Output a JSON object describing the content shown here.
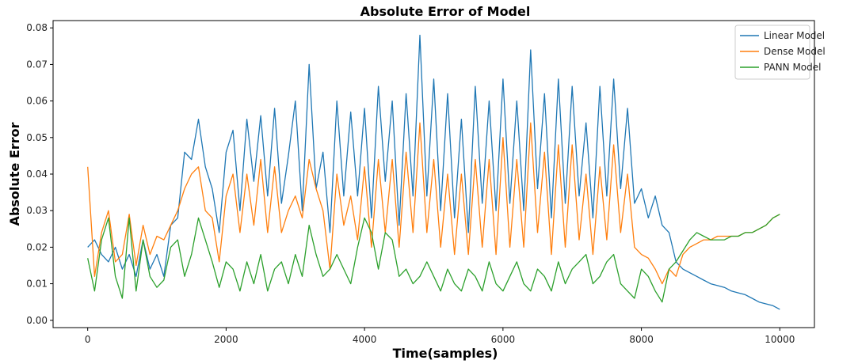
{
  "chart_data": {
    "type": "line",
    "title": "Absolute Error of Model",
    "xlabel": "Time(samples)",
    "ylabel": "Absolute Error",
    "xlim": [
      -500,
      10500
    ],
    "ylim": [
      -0.002,
      0.082
    ],
    "xticks": [
      0,
      2000,
      4000,
      6000,
      8000,
      10000
    ],
    "yticks": [
      0.0,
      0.01,
      0.02,
      0.03,
      0.04,
      0.05,
      0.06,
      0.07,
      0.08
    ],
    "ytick_labels": [
      "0.00",
      "0.01",
      "0.02",
      "0.03",
      "0.04",
      "0.05",
      "0.06",
      "0.07",
      "0.08"
    ],
    "legend_position": "upper-right",
    "grid": false,
    "series": [
      {
        "name": "Linear Model",
        "color": "#1f77b4",
        "x": [
          0,
          100,
          200,
          300,
          400,
          500,
          600,
          700,
          800,
          900,
          1000,
          1100,
          1200,
          1300,
          1400,
          1500,
          1600,
          1700,
          1800,
          1900,
          2000,
          2100,
          2200,
          2300,
          2400,
          2500,
          2600,
          2700,
          2800,
          2900,
          3000,
          3100,
          3200,
          3300,
          3400,
          3500,
          3600,
          3700,
          3800,
          3900,
          4000,
          4100,
          4200,
          4300,
          4400,
          4500,
          4600,
          4700,
          4800,
          4900,
          5000,
          5100,
          5200,
          5300,
          5400,
          5500,
          5600,
          5700,
          5800,
          5900,
          6000,
          6100,
          6200,
          6300,
          6400,
          6500,
          6600,
          6700,
          6800,
          6900,
          7000,
          7100,
          7200,
          7300,
          7400,
          7500,
          7600,
          7700,
          7800,
          7900,
          8000,
          8100,
          8200,
          8300,
          8400,
          8500,
          8600,
          8700,
          8800,
          8900,
          9000,
          9100,
          9200,
          9300,
          9400,
          9500,
          9600,
          9700,
          9800,
          9900,
          10000
        ],
        "values": [
          0.02,
          0.022,
          0.018,
          0.016,
          0.02,
          0.014,
          0.018,
          0.012,
          0.022,
          0.014,
          0.018,
          0.012,
          0.026,
          0.028,
          0.046,
          0.044,
          0.055,
          0.042,
          0.036,
          0.024,
          0.046,
          0.052,
          0.03,
          0.055,
          0.038,
          0.056,
          0.034,
          0.058,
          0.032,
          0.045,
          0.06,
          0.03,
          0.07,
          0.036,
          0.046,
          0.024,
          0.06,
          0.034,
          0.057,
          0.034,
          0.058,
          0.028,
          0.064,
          0.038,
          0.06,
          0.026,
          0.062,
          0.034,
          0.078,
          0.034,
          0.066,
          0.03,
          0.062,
          0.028,
          0.055,
          0.024,
          0.064,
          0.032,
          0.06,
          0.03,
          0.066,
          0.032,
          0.06,
          0.03,
          0.074,
          0.036,
          0.062,
          0.028,
          0.066,
          0.032,
          0.064,
          0.034,
          0.054,
          0.028,
          0.064,
          0.034,
          0.066,
          0.036,
          0.058,
          0.032,
          0.036,
          0.028,
          0.034,
          0.026,
          0.024,
          0.016,
          0.014,
          0.013,
          0.012,
          0.011,
          0.01,
          0.0095,
          0.009,
          0.008,
          0.0075,
          0.007,
          0.006,
          0.005,
          0.0045,
          0.004,
          0.003
        ]
      },
      {
        "name": "Dense Model",
        "color": "#ff7f0e",
        "x": [
          0,
          100,
          200,
          300,
          400,
          500,
          600,
          700,
          800,
          900,
          1000,
          1100,
          1200,
          1300,
          1400,
          1500,
          1600,
          1700,
          1800,
          1900,
          2000,
          2100,
          2200,
          2300,
          2400,
          2500,
          2600,
          2700,
          2800,
          2900,
          3000,
          3100,
          3200,
          3300,
          3400,
          3500,
          3600,
          3700,
          3800,
          3900,
          4000,
          4100,
          4200,
          4300,
          4400,
          4500,
          4600,
          4700,
          4800,
          4900,
          5000,
          5100,
          5200,
          5300,
          5400,
          5500,
          5600,
          5700,
          5800,
          5900,
          6000,
          6100,
          6200,
          6300,
          6400,
          6500,
          6600,
          6700,
          6800,
          6900,
          7000,
          7100,
          7200,
          7300,
          7400,
          7500,
          7600,
          7700,
          7800,
          7900,
          8000,
          8100,
          8200,
          8300,
          8400,
          8500,
          8600,
          8700,
          8800,
          8900,
          9000,
          9100,
          9200,
          9300,
          9400,
          9500,
          9600,
          9700,
          9800,
          9900,
          10000
        ],
        "values": [
          0.042,
          0.012,
          0.024,
          0.03,
          0.016,
          0.018,
          0.029,
          0.015,
          0.026,
          0.018,
          0.023,
          0.022,
          0.026,
          0.03,
          0.036,
          0.04,
          0.042,
          0.03,
          0.028,
          0.016,
          0.034,
          0.04,
          0.024,
          0.04,
          0.026,
          0.044,
          0.024,
          0.042,
          0.024,
          0.03,
          0.034,
          0.028,
          0.044,
          0.036,
          0.03,
          0.014,
          0.04,
          0.026,
          0.034,
          0.022,
          0.042,
          0.02,
          0.044,
          0.024,
          0.044,
          0.02,
          0.046,
          0.024,
          0.054,
          0.024,
          0.044,
          0.02,
          0.04,
          0.018,
          0.04,
          0.018,
          0.044,
          0.02,
          0.044,
          0.018,
          0.05,
          0.02,
          0.044,
          0.02,
          0.054,
          0.024,
          0.046,
          0.018,
          0.048,
          0.02,
          0.048,
          0.022,
          0.04,
          0.018,
          0.042,
          0.022,
          0.048,
          0.024,
          0.04,
          0.02,
          0.018,
          0.017,
          0.014,
          0.01,
          0.014,
          0.012,
          0.018,
          0.02,
          0.021,
          0.022,
          0.022,
          0.023,
          0.023,
          0.023,
          0.023,
          0.024,
          0.024,
          0.025,
          0.026,
          0.028,
          0.029
        ]
      },
      {
        "name": "PANN Model",
        "color": "#2ca02c",
        "x": [
          0,
          100,
          200,
          300,
          400,
          500,
          600,
          700,
          800,
          900,
          1000,
          1100,
          1200,
          1300,
          1400,
          1500,
          1600,
          1700,
          1800,
          1900,
          2000,
          2100,
          2200,
          2300,
          2400,
          2500,
          2600,
          2700,
          2800,
          2900,
          3000,
          3100,
          3200,
          3300,
          3400,
          3500,
          3600,
          3700,
          3800,
          3900,
          4000,
          4100,
          4200,
          4300,
          4400,
          4500,
          4600,
          4700,
          4800,
          4900,
          5000,
          5100,
          5200,
          5300,
          5400,
          5500,
          5600,
          5700,
          5800,
          5900,
          6000,
          6100,
          6200,
          6300,
          6400,
          6500,
          6600,
          6700,
          6800,
          6900,
          7000,
          7100,
          7200,
          7300,
          7400,
          7500,
          7600,
          7700,
          7800,
          7900,
          8000,
          8100,
          8200,
          8300,
          8400,
          8500,
          8600,
          8700,
          8800,
          8900,
          9000,
          9100,
          9200,
          9300,
          9400,
          9500,
          9600,
          9700,
          9800,
          9900,
          10000
        ],
        "values": [
          0.017,
          0.008,
          0.022,
          0.028,
          0.012,
          0.006,
          0.028,
          0.008,
          0.022,
          0.012,
          0.009,
          0.011,
          0.02,
          0.022,
          0.012,
          0.018,
          0.028,
          0.022,
          0.016,
          0.009,
          0.016,
          0.014,
          0.008,
          0.016,
          0.01,
          0.018,
          0.008,
          0.014,
          0.016,
          0.01,
          0.018,
          0.012,
          0.026,
          0.018,
          0.012,
          0.014,
          0.018,
          0.014,
          0.01,
          0.02,
          0.028,
          0.024,
          0.014,
          0.024,
          0.022,
          0.012,
          0.014,
          0.01,
          0.012,
          0.016,
          0.012,
          0.008,
          0.014,
          0.01,
          0.008,
          0.014,
          0.012,
          0.008,
          0.016,
          0.01,
          0.008,
          0.012,
          0.016,
          0.01,
          0.008,
          0.014,
          0.012,
          0.008,
          0.016,
          0.01,
          0.014,
          0.016,
          0.018,
          0.01,
          0.012,
          0.016,
          0.018,
          0.01,
          0.008,
          0.006,
          0.014,
          0.012,
          0.008,
          0.005,
          0.014,
          0.016,
          0.019,
          0.022,
          0.024,
          0.023,
          0.022,
          0.022,
          0.022,
          0.023,
          0.023,
          0.024,
          0.024,
          0.025,
          0.026,
          0.028,
          0.029
        ]
      }
    ]
  }
}
